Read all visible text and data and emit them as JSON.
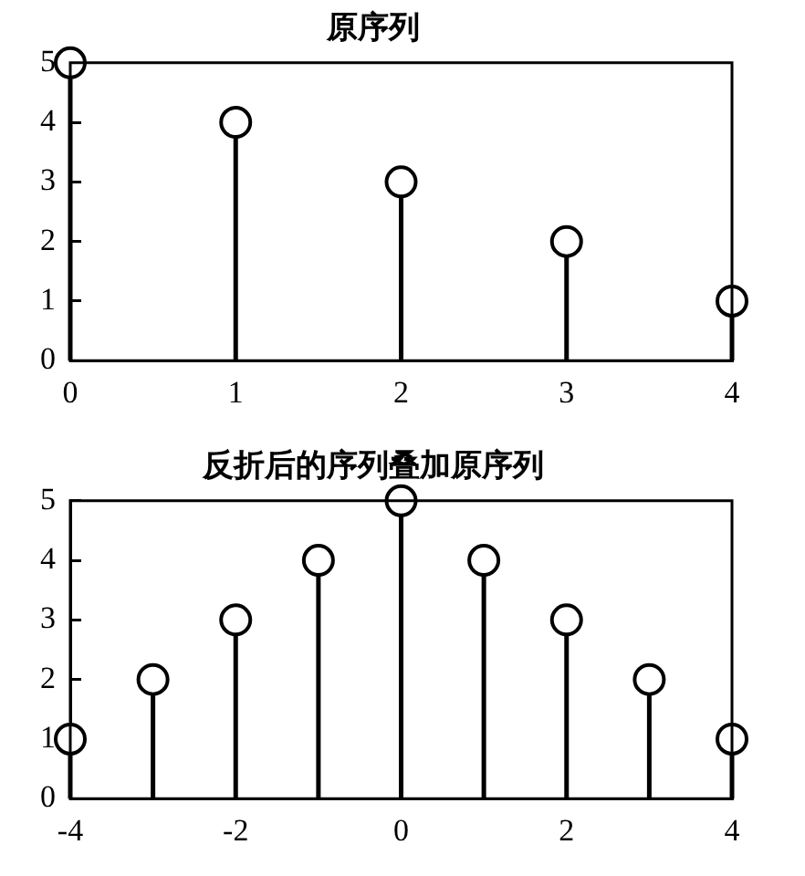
{
  "chart_data": [
    {
      "type": "lollipop",
      "title": "原序列",
      "x": [
        0,
        1,
        2,
        3,
        4
      ],
      "values": [
        5,
        4,
        3,
        2,
        1
      ],
      "color": "#000000",
      "marker": "circle",
      "xlim": [
        0,
        4
      ],
      "xticks": [
        0,
        1,
        2,
        3,
        4
      ],
      "ylim": [
        0,
        5
      ],
      "yticks": [
        0,
        1,
        2,
        3,
        4,
        5
      ]
    },
    {
      "type": "lollipop",
      "title": "反折后的序列叠加原序列",
      "x": [
        -4,
        -3,
        -2,
        -1,
        0,
        1,
        2,
        3,
        4
      ],
      "values": [
        1,
        2,
        3,
        4,
        5,
        4,
        3,
        2,
        1
      ],
      "color": "#000000",
      "marker": "circle",
      "xlim": [
        -4,
        4
      ],
      "xticks": [
        -4,
        -2,
        0,
        2,
        4
      ],
      "ylim": [
        0,
        5
      ],
      "yticks": [
        0,
        1,
        2,
        3,
        4,
        5
      ]
    }
  ]
}
